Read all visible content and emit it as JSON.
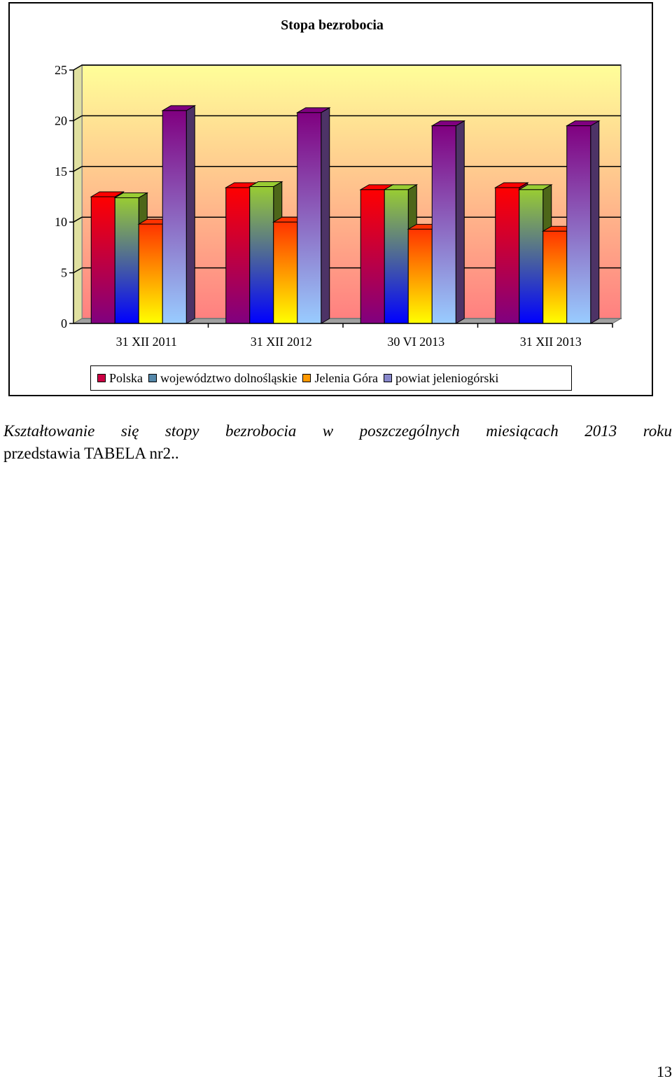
{
  "chart_data": {
    "type": "bar",
    "title": "Stopa bezrobocia",
    "categories": [
      "31 XII 2011",
      "31 XII 2012",
      "30 VI 2013",
      "31 XII 2013"
    ],
    "series": [
      {
        "name": "Polska",
        "values": [
          12.5,
          13.4,
          13.2,
          13.4
        ]
      },
      {
        "name": "województwo dolnośląskie",
        "values": [
          12.4,
          13.5,
          13.2,
          13.2
        ]
      },
      {
        "name": "Jelenia Góra",
        "values": [
          9.8,
          10.0,
          9.3,
          9.1
        ]
      },
      {
        "name": "powiat jeleniogórski",
        "values": [
          21.0,
          20.8,
          19.5,
          19.5
        ]
      }
    ],
    "yticks": [
      "0",
      "5",
      "10",
      "15",
      "20",
      "25"
    ],
    "ylim": [
      0,
      25
    ],
    "grid": true,
    "legend_position": "bottom"
  },
  "colors": {
    "series": [
      {
        "top": "#ff0000",
        "bottom": "#800080",
        "side": "#8b0030"
      },
      {
        "top": "#99cc33",
        "bottom": "#0000ff",
        "side": "#4d6619"
      },
      {
        "top": "#ff3300",
        "bottom": "#ffff00",
        "side": "#b36b00"
      },
      {
        "top": "#800080",
        "bottom": "#99ccff",
        "side": "#4d3366"
      }
    ],
    "legend_swatch": [
      "#cc0044",
      "#5588aa",
      "#ff9900",
      "#8888cc"
    ],
    "plot_top": "#ffff99",
    "plot_bottom": "#ff8080"
  },
  "caption": {
    "line1": "Kształtowanie się stopy bezrobocia w poszczególnych miesiącach 2013 roku",
    "line2": "przedstawia TABELA nr2.."
  },
  "page_number": "13"
}
